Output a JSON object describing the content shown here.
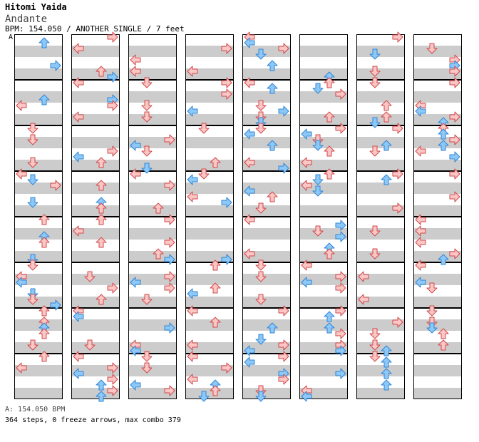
{
  "header": {
    "artist": "Hitomi Yaida",
    "title": "Andante",
    "info": "BPM: 154.050 / ANOTHER SINGLE / 7 feet"
  },
  "speed_marker": "A",
  "footer": {
    "bpm": "A: 154.050 BPM",
    "stats": "364 steps, 0 freeze arrows, max combo 379"
  },
  "colors": {
    "blue_fill": "#8ec8f6",
    "blue_stroke": "#2f86d8",
    "red_fill": "#fbc6c6",
    "red_stroke": "#d04848",
    "stripe": "#cccccc",
    "border": "#000000"
  },
  "chart": {
    "columns": 8,
    "measures_per_column": 8,
    "lanes": [
      "left",
      "down",
      "up",
      "right"
    ],
    "steps": 364,
    "freeze_arrows": 0
  }
}
